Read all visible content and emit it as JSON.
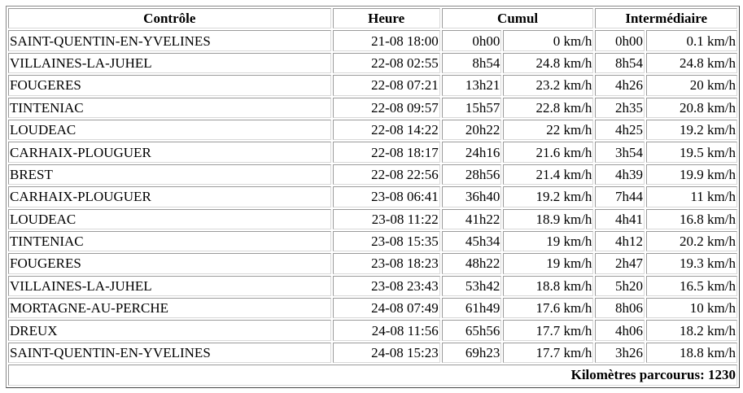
{
  "headers": {
    "controle": "Contrôle",
    "heure": "Heure",
    "cumul": "Cumul",
    "intermediaire": "Intermédiaire"
  },
  "rows": [
    {
      "name": "SAINT-QUENTIN-EN-YVELINES",
      "heure": "21-08 18:00",
      "cumul_time": "0h00",
      "cumul_speed": "0 km/h",
      "inter_time": "0h00",
      "inter_speed": "0.1 km/h"
    },
    {
      "name": "VILLAINES-LA-JUHEL",
      "heure": "22-08 02:55",
      "cumul_time": "8h54",
      "cumul_speed": "24.8 km/h",
      "inter_time": "8h54",
      "inter_speed": "24.8 km/h"
    },
    {
      "name": "FOUGERES",
      "heure": "22-08 07:21",
      "cumul_time": "13h21",
      "cumul_speed": "23.2 km/h",
      "inter_time": "4h26",
      "inter_speed": "20 km/h"
    },
    {
      "name": "TINTENIAC",
      "heure": "22-08 09:57",
      "cumul_time": "15h57",
      "cumul_speed": "22.8 km/h",
      "inter_time": "2h35",
      "inter_speed": "20.8 km/h"
    },
    {
      "name": "LOUDEAC",
      "heure": "22-08 14:22",
      "cumul_time": "20h22",
      "cumul_speed": "22 km/h",
      "inter_time": "4h25",
      "inter_speed": "19.2 km/h"
    },
    {
      "name": "CARHAIX-PLOUGUER",
      "heure": "22-08 18:17",
      "cumul_time": "24h16",
      "cumul_speed": "21.6 km/h",
      "inter_time": "3h54",
      "inter_speed": "19.5 km/h"
    },
    {
      "name": "BREST",
      "heure": "22-08 22:56",
      "cumul_time": "28h56",
      "cumul_speed": "21.4 km/h",
      "inter_time": "4h39",
      "inter_speed": "19.9 km/h"
    },
    {
      "name": "CARHAIX-PLOUGUER",
      "heure": "23-08 06:41",
      "cumul_time": "36h40",
      "cumul_speed": "19.2 km/h",
      "inter_time": "7h44",
      "inter_speed": "11 km/h"
    },
    {
      "name": "LOUDEAC",
      "heure": "23-08 11:22",
      "cumul_time": "41h22",
      "cumul_speed": "18.9 km/h",
      "inter_time": "4h41",
      "inter_speed": "16.8 km/h"
    },
    {
      "name": "TINTENIAC",
      "heure": "23-08 15:35",
      "cumul_time": "45h34",
      "cumul_speed": "19 km/h",
      "inter_time": "4h12",
      "inter_speed": "20.2 km/h"
    },
    {
      "name": "FOUGERES",
      "heure": "23-08 18:23",
      "cumul_time": "48h22",
      "cumul_speed": "19 km/h",
      "inter_time": "2h47",
      "inter_speed": "19.3 km/h"
    },
    {
      "name": "VILLAINES-LA-JUHEL",
      "heure": "23-08 23:43",
      "cumul_time": "53h42",
      "cumul_speed": "18.8 km/h",
      "inter_time": "5h20",
      "inter_speed": "16.5 km/h"
    },
    {
      "name": "MORTAGNE-AU-PERCHE",
      "heure": "24-08 07:49",
      "cumul_time": "61h49",
      "cumul_speed": "17.6 km/h",
      "inter_time": "8h06",
      "inter_speed": "10 km/h"
    },
    {
      "name": "DREUX",
      "heure": "24-08 11:56",
      "cumul_time": "65h56",
      "cumul_speed": "17.7 km/h",
      "inter_time": "4h06",
      "inter_speed": "18.2 km/h"
    },
    {
      "name": "SAINT-QUENTIN-EN-YVELINES",
      "heure": "24-08 15:23",
      "cumul_time": "69h23",
      "cumul_speed": "17.7 km/h",
      "inter_time": "3h26",
      "inter_speed": "18.8 km/h"
    }
  ],
  "footer": "Kilomètres parcourus: 1230"
}
